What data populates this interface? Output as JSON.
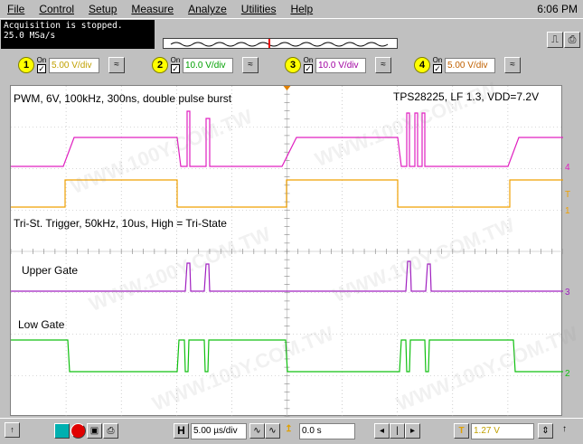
{
  "menu": {
    "items": [
      "File",
      "Control",
      "Setup",
      "Measure",
      "Analyze",
      "Utilities",
      "Help"
    ],
    "clock": "6:06 PM"
  },
  "status": {
    "line1": "Acquisition is stopped.",
    "line2": "25.0 MSa/s"
  },
  "channels": [
    {
      "num": "1",
      "on": "On",
      "value": "5.00 V/div",
      "color": "#ffff00"
    },
    {
      "num": "2",
      "on": "On",
      "value": "10.0 V/div",
      "color": "#00ff00"
    },
    {
      "num": "3",
      "on": "On",
      "value": "10.0 V/div",
      "color": "#ff00ff"
    },
    {
      "num": "4",
      "on": "On",
      "value": "5.00 V/div",
      "color": "#ff8000"
    }
  ],
  "screen": {
    "title_left": "PWM, 6V, 100kHz, 300ns, double pulse burst",
    "title_right": "TPS28225, LF 1.3, VDD=7.2V",
    "label_tristate": "Tri-St. Trigger, 50kHz, 10us, High = Tri-State",
    "label_upper": "Upper Gate",
    "label_low": "Low Gate",
    "watermark": "WWW.100Y.COM.TW",
    "markers": {
      "m4": "4",
      "mT": "T",
      "m1": "1",
      "m3": "3",
      "m2": "2"
    }
  },
  "colors": {
    "pwm": "#e020c0",
    "tristate": "#f0a000",
    "upper": "#a020c0",
    "low": "#10c010",
    "grid": "#b0b0b0"
  },
  "bottom": {
    "h_label": "H",
    "timebase": "5.00 µs/div",
    "delay": "0.0 s",
    "trig_label": "T",
    "trig_level": "1.27 V"
  }
}
